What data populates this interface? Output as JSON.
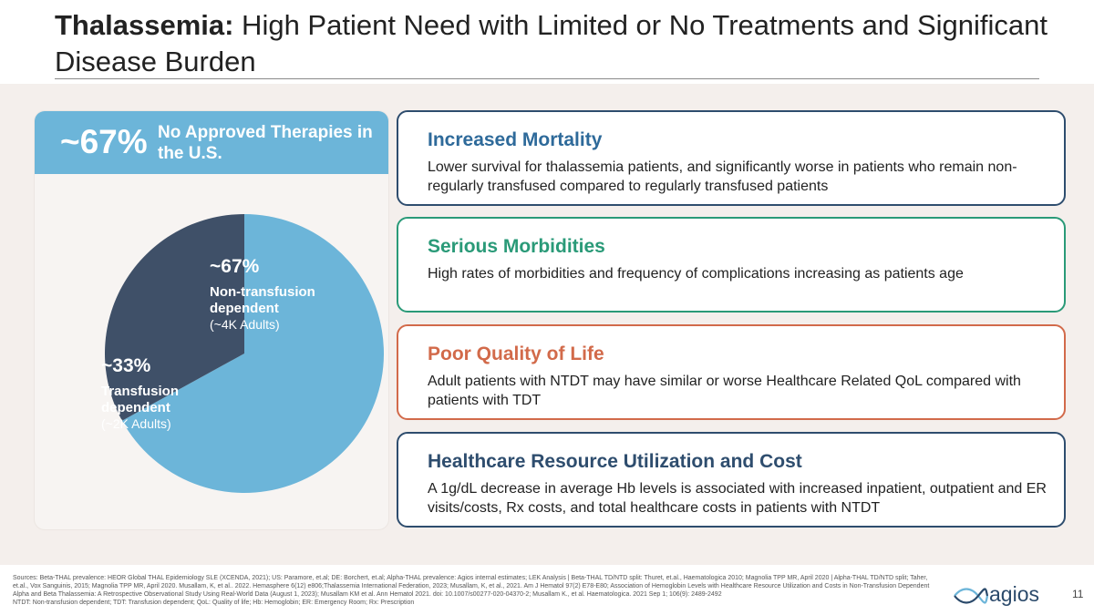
{
  "slide": {
    "title_bold": "Thalassemia:",
    "title_rest": " High Patient Need with Limited or No Treatments and Significant Disease Burden"
  },
  "left_panel": {
    "header_value": "~67%",
    "header_label": "No Approved Therapies in the U.S."
  },
  "chart_data": {
    "type": "pie",
    "slices": [
      {
        "pct": "~67%",
        "value": 67,
        "name": "Non-transfusion dependent",
        "sub": "(~4K Adults)",
        "color": "#6cb5d9"
      },
      {
        "pct": "~33%",
        "value": 33,
        "name": "Transfusion dependent",
        "sub": "(~2K Adults)",
        "color": "#3f5068"
      }
    ]
  },
  "cards": [
    {
      "title": "Increased Mortality",
      "body": "Lower survival for thalassemia patients, and significantly worse in patients who remain non-regularly transfused compared to regularly transfused patients",
      "color": "#2e6a9a",
      "border": "#2e4d6e"
    },
    {
      "title": "Serious Morbidities",
      "body": "High rates of morbidities and frequency of complications increasing as patients age",
      "color": "#2a9a78",
      "border": "#2a9a78"
    },
    {
      "title": "Poor Quality of Life",
      "body": "Adult patients with NTDT may have similar or worse Healthcare Related QoL compared with patients with TDT",
      "color": "#d26a4a",
      "border": "#d26a4a"
    },
    {
      "title": "Healthcare Resource Utilization and Cost",
      "body": "A 1g/dL decrease in average Hb levels is associated with increased inpatient, outpatient and ER visits/costs, Rx costs, and total healthcare costs in patients with NTDT",
      "color": "#2e4d6e",
      "border": "#2e4d6e"
    }
  ],
  "footer": {
    "sources": "Sources: Beta-THAL prevalence: HEOR Global THAL Epidemiology SLE (XCENDA, 2021); US: Paramore, et.al; DE: Borchert, et.al; Alpha-THAL prevalence: Agios internal estimates; LEK Analysis | Beta-THAL TD/NTD split: Thuret, et.al., Haematologica 2010; Magnolia TPP MR, April 2020 | Alpha-THAL TD/NTD split; Taher, et.al., Vox Sanguinis, 2015; Magnolia TPP MR, April 2020. Musallam, K, et al.. 2022. Hemasphere 6(12) e806;Thalassemia International Federation, 2023; Musallam, K, et al., 2021. Am J Hematol 97(2) E78-E80; Association of Hemoglobin Levels with Healthcare Resource Utilization and Costs in Non-Transfusion Dependent Alpha and Beta Thalassemia: A Retrospective Observational Study Using Real-World Data (August 1, 2023); Musallam KM et al. Ann Hematol 2021. doi: 10.1007/s00277-020-04370-2; Musallam K., et al. Haematologica. 2021 Sep 1; 106(9): 2489-2492",
    "abbreviations": "NTDT: Non-transfusion dependent; TDT: Transfusion dependent; QoL: Quality of life; Hb: Hemoglobin; ER: Emergency Room; Rx: Prescription",
    "logo_text": "agios",
    "page_number": "11"
  },
  "colors": {
    "band": "#f4efec",
    "accent_blue": "#6cb5d9",
    "dark_slate": "#3f5068"
  }
}
